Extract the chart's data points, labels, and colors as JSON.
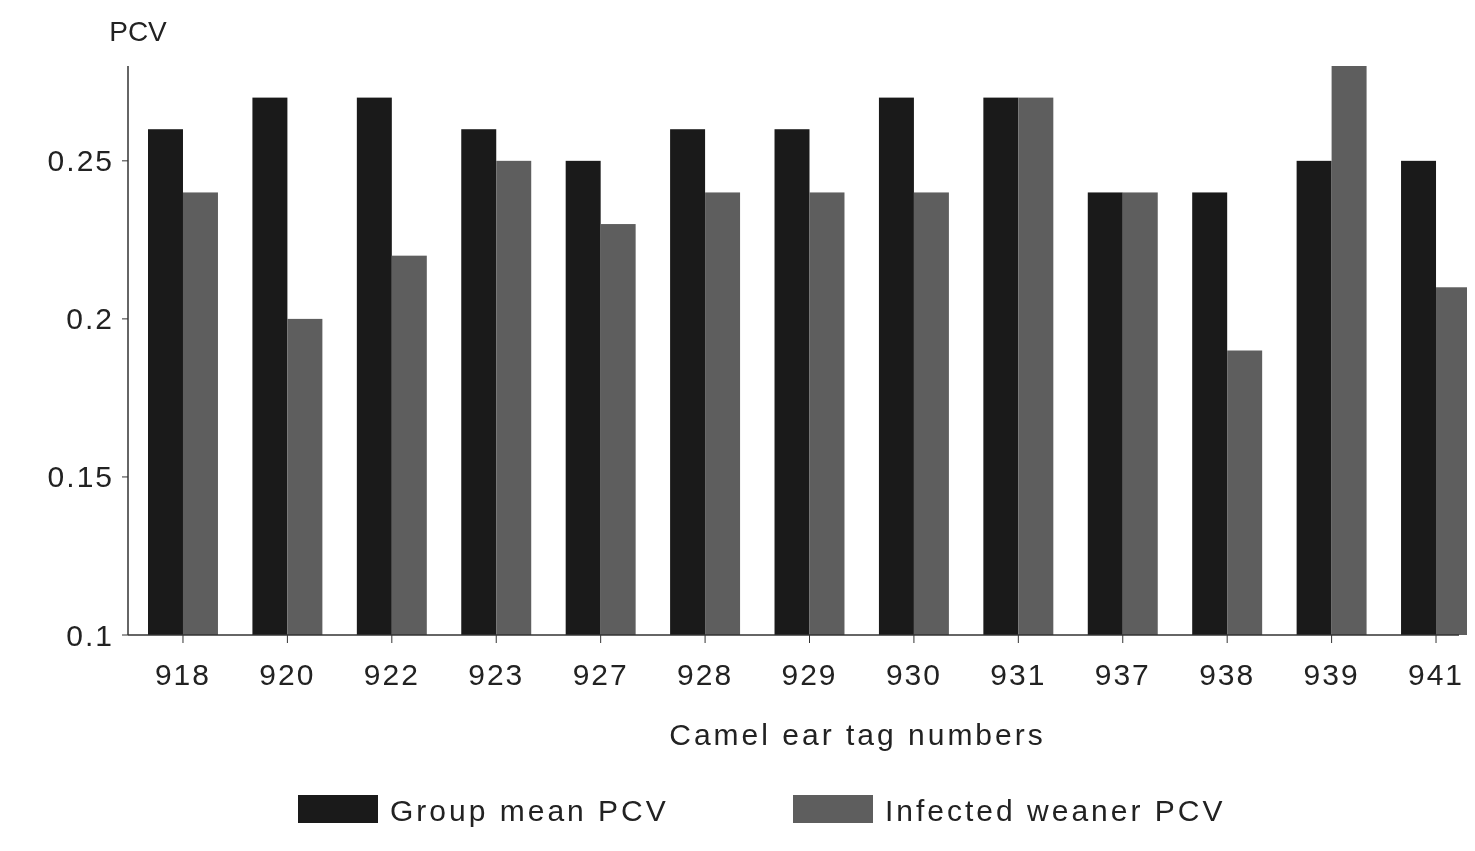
{
  "chart_data": {
    "type": "bar",
    "ylabel": "PCV",
    "xlabel": "Camel ear tag numbers",
    "categories": [
      "918",
      "920",
      "922",
      "923",
      "927",
      "928",
      "929",
      "930",
      "931",
      "937",
      "938",
      "939",
      "941"
    ],
    "series": [
      {
        "name": "Group mean PCV",
        "color": "#1a1a1a",
        "values": [
          0.26,
          0.27,
          0.27,
          0.26,
          0.25,
          0.26,
          0.26,
          0.27,
          0.27,
          0.24,
          0.24,
          0.25,
          0.25
        ]
      },
      {
        "name": "Infected weaner PCV",
        "color": "#5e5e5e",
        "values": [
          0.24,
          0.2,
          0.22,
          0.25,
          0.23,
          0.24,
          0.24,
          0.24,
          0.27,
          0.24,
          0.19,
          0.28,
          0.21
        ]
      }
    ],
    "ylim": [
      0.1,
      0.28
    ],
    "yticks": [
      0.1,
      0.15,
      0.2,
      0.25
    ],
    "grid": false,
    "legend": "bottom"
  }
}
